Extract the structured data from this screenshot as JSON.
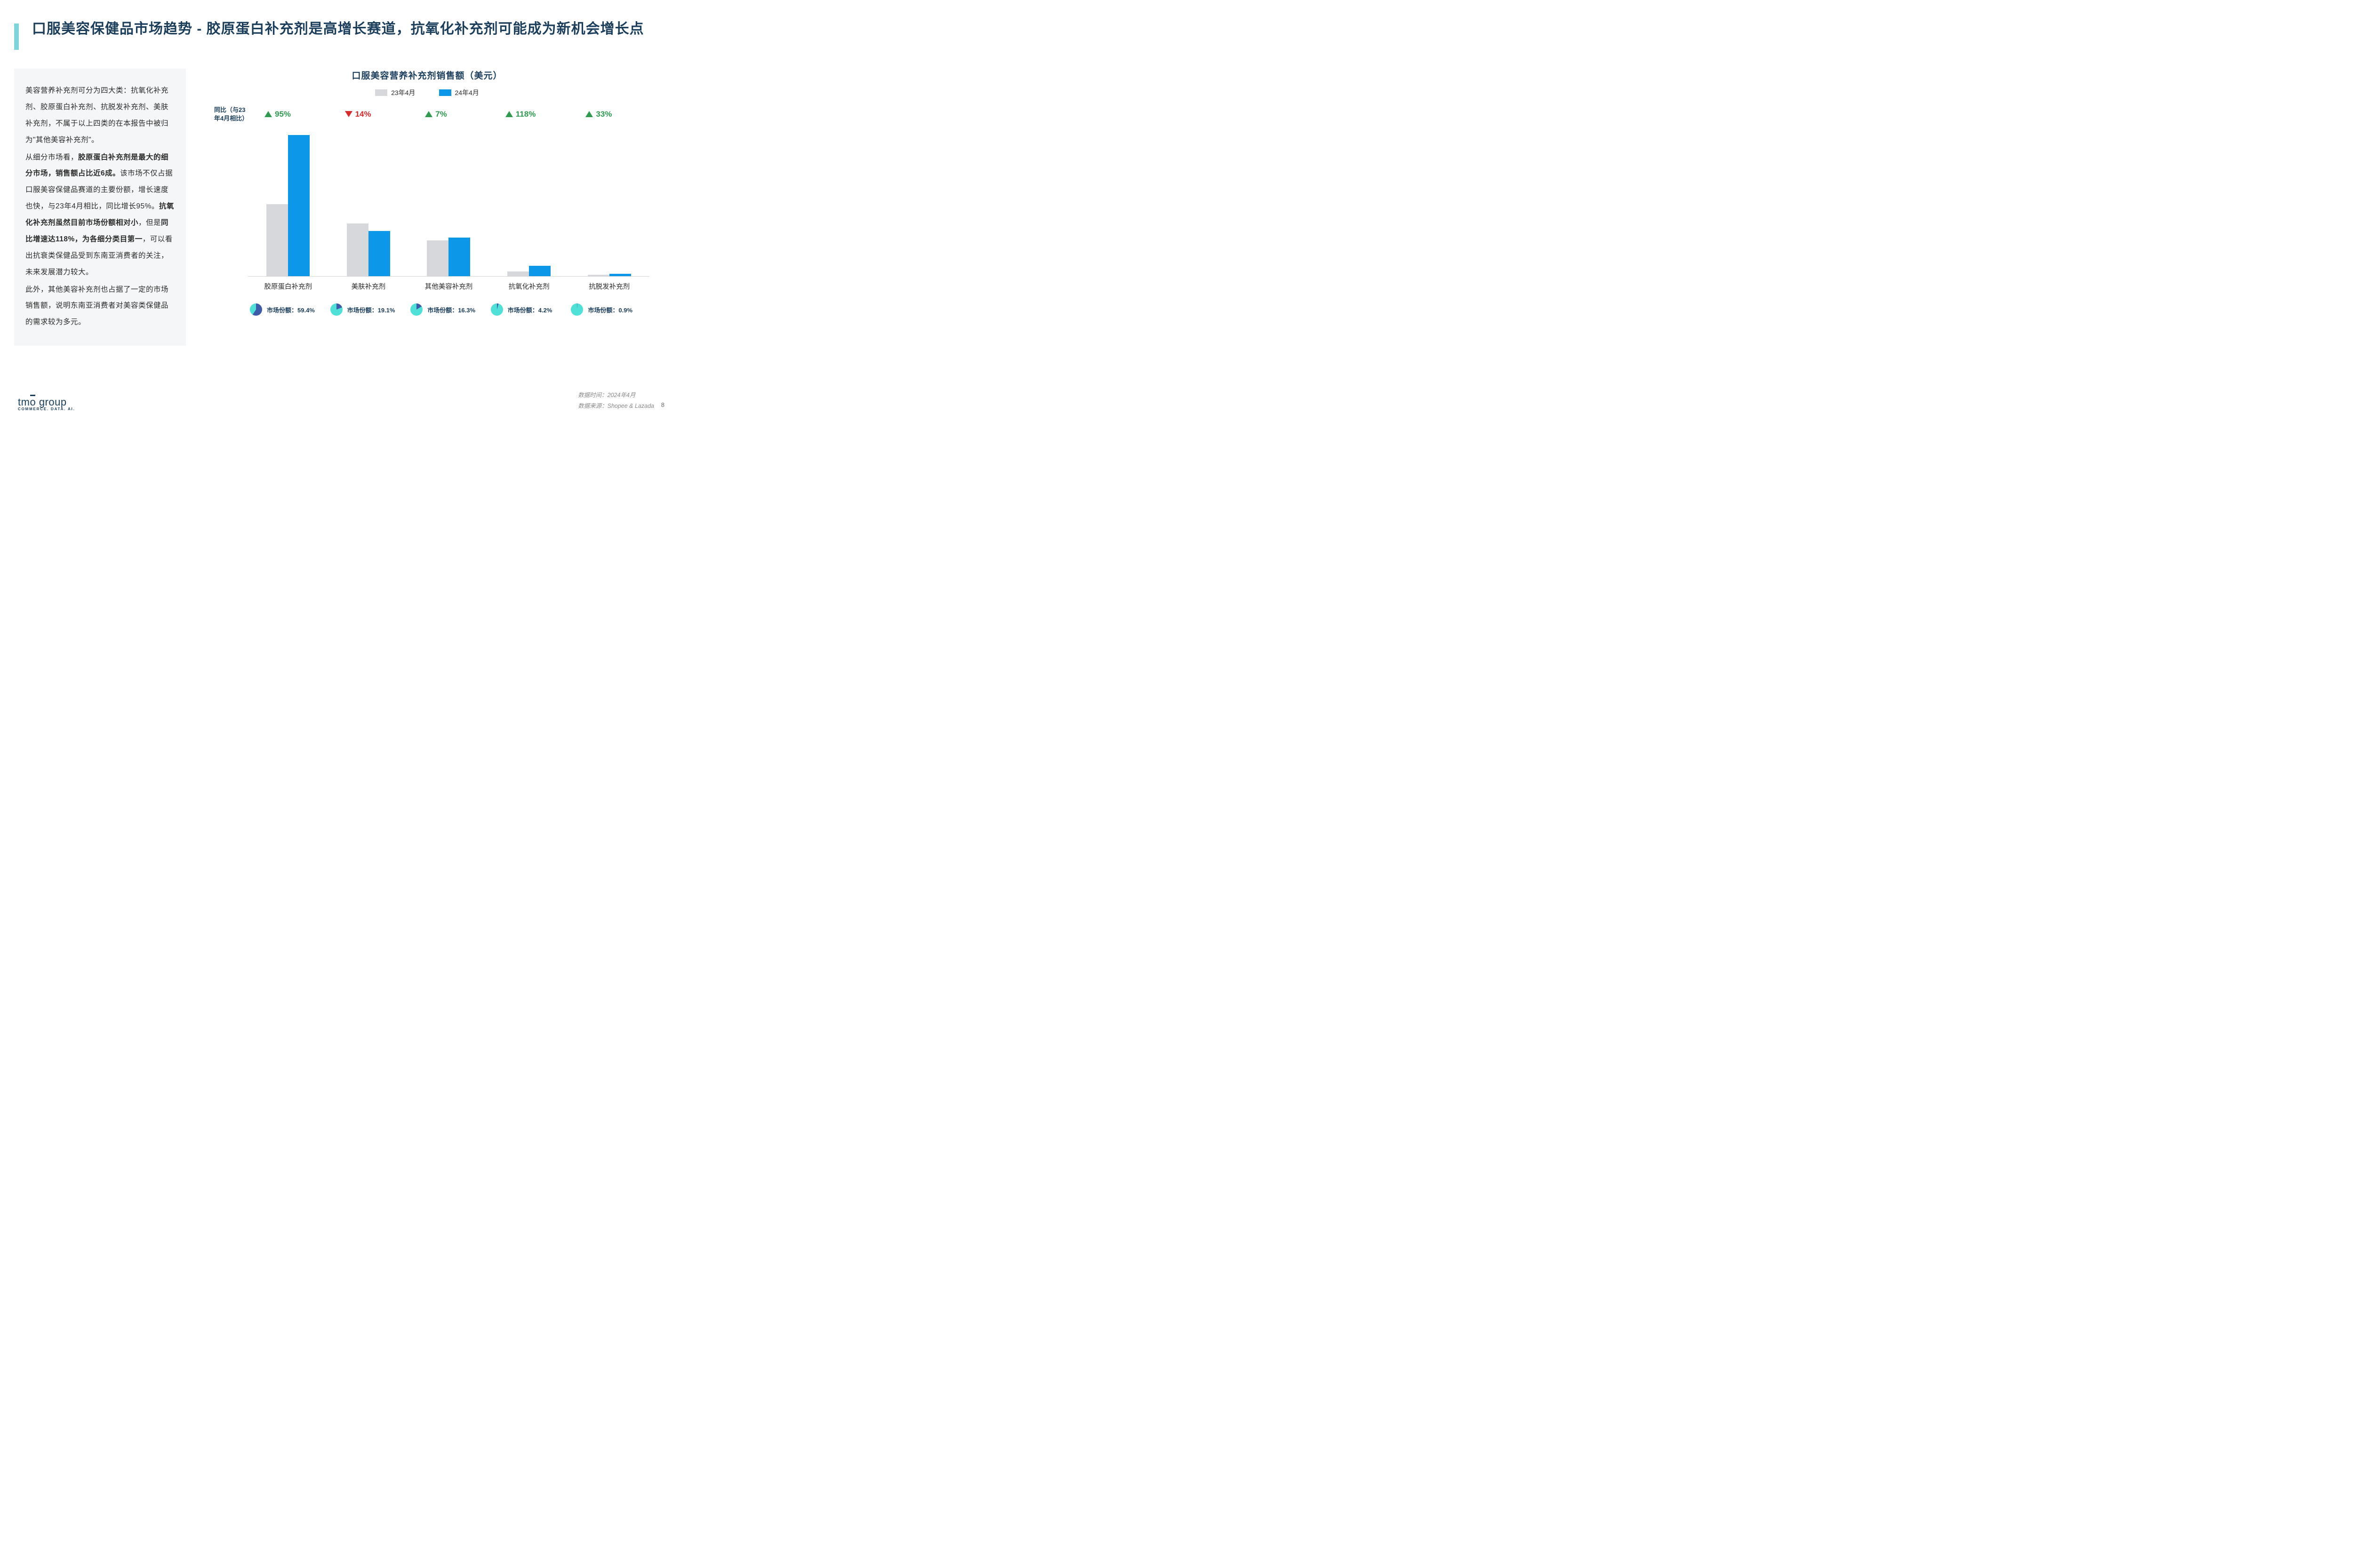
{
  "title": "口服美容保健品市场趋势 - 胶原蛋白补充剂是高增长赛道，抗氧化补充剂可能成为新机会增长点",
  "accent_color": "#7fd4d9",
  "title_color": "#1a3e5c",
  "left_panel": {
    "bg": "#f5f6f7",
    "paragraphs": [
      {
        "html": "美容营养补充剂可分为四大类：抗氧化补充剂、胶原蛋白补充剂、抗脱发补充剂、美肤补充剂，不属于以上四类的在本报告中被归为\"其他美容补充剂\"。"
      },
      {
        "html": "从细分市场看，<b>胶原蛋白补充剂是最大的细分市场，销售额占比近6成。</b>该市场不仅占据口服美容保健品赛道的主要份额，增长速度也快，与23年4月相比，同比增长95%。<b>抗氧化补充剂虽然目前市场份额相对小</b>，但是<b>同比增速达118%，为各细分类目第一</b>，可以看出抗衰类保健品受到东南亚消费者的关注，未来发展潜力较大。"
      },
      {
        "html": "此外，其他美容补充剂也占据了一定的市场销售额，说明东南亚消费者对美容类保健品的需求较为多元。"
      }
    ]
  },
  "chart": {
    "title": "口服美容营养补充剂销售额（美元）",
    "yoy_label": "同比（与23年4月相比）",
    "legend": [
      {
        "label": "23年4月",
        "color": "#d6d8db"
      },
      {
        "label": "24年4月",
        "color": "#0c97e8"
      }
    ],
    "up_color": "#2e9b4f",
    "down_color": "#d92b2b",
    "share_label_prefix": "市场份额：",
    "pie_fg": "#3d5ba9",
    "pie_bg": "#4fe0d7",
    "max_value": 100,
    "categories": [
      {
        "name": "胶原蛋白补充剂",
        "yoy": "95%",
        "dir": "up",
        "v23": 48,
        "v24": 94,
        "share": 59.4,
        "share_text": "59.4%"
      },
      {
        "name": "美肤补充剂",
        "yoy": "14%",
        "dir": "down",
        "v23": 35,
        "v24": 30,
        "share": 19.1,
        "share_text": "19.1%"
      },
      {
        "name": "其他美容补充剂",
        "yoy": "7%",
        "dir": "up",
        "v23": 24,
        "v24": 25.7,
        "share": 16.3,
        "share_text": "16.3%"
      },
      {
        "name": "抗氧化补充剂",
        "yoy": "118%",
        "dir": "up",
        "v23": 3.2,
        "v24": 7,
        "share": 4.2,
        "share_text": "4.2%"
      },
      {
        "name": "抗脱发补充剂",
        "yoy": "33%",
        "dir": "up",
        "v23": 1.1,
        "v24": 1.5,
        "share": 0.9,
        "share_text": "0.9%"
      }
    ]
  },
  "footer": {
    "logo_main": "tmo group",
    "logo_sub": "COMMERCE. DATA. AI.",
    "meta_time_label": "数据时间：",
    "meta_time": "2024年4月",
    "meta_src_label": "数据来源：",
    "meta_src": "Shopee & Lazada",
    "page": "8"
  }
}
